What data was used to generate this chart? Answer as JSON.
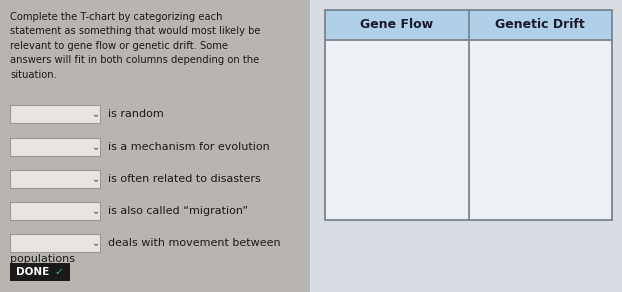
{
  "bg_color_left": "#b8b4b0",
  "bg_color_right": "#d8dde4",
  "left_text_lines": [
    "Complete the T-chart by categorizing each",
    "statement as something that would most likely be",
    "relevant to gene flow or genetic drift. Some",
    "answers will fit in both columns depending on the",
    "situation."
  ],
  "items": [
    {
      "label": "is random"
    },
    {
      "label": "is a mechanism for evolution"
    },
    {
      "label": "is often related to disasters"
    },
    {
      "label": "is also called “migration”"
    },
    {
      "label": "deals with movement between"
    }
  ],
  "last_item_continuation": "populations",
  "table_headers": [
    "Gene Flow",
    "Genetic Drift"
  ],
  "table_header_bg": "#afd0e8",
  "table_body_bg": "#edf1f4",
  "table_border_color": "#7a8590",
  "done_bg": "#1a1a1a",
  "done_text": "DONE",
  "done_check_color": "#33cc55",
  "dropdown_bg": "#e8e4e0",
  "dropdown_border": "#999990",
  "item_text_color": "#1a1a1a",
  "header_text_color": "#1a1a2a",
  "left_text_color": "#1a1a1a",
  "fig_width": 6.22,
  "fig_height": 2.92,
  "dpi": 100
}
